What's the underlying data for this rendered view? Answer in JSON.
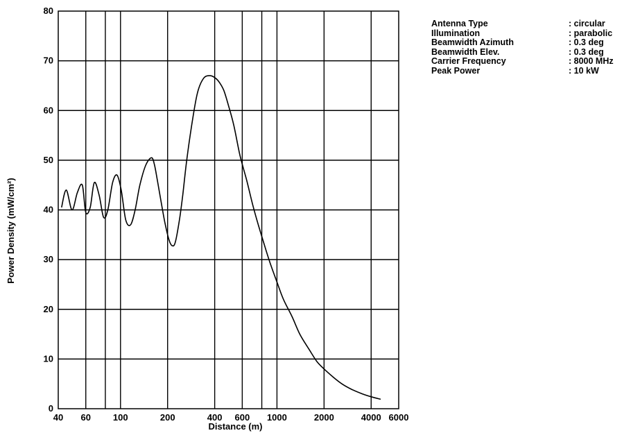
{
  "chart_data": {
    "type": "line",
    "title": "",
    "xlabel": "Distance (m)",
    "ylabel": "Power Density (mW/cm²)",
    "xscale": "log",
    "xlim": [
      40,
      6000
    ],
    "ylim": [
      0,
      80
    ],
    "grid": true,
    "x_tick_labels": [
      "40",
      "60",
      "100",
      "200",
      "400",
      "600",
      "1000",
      "2000",
      "4000",
      "6000"
    ],
    "x_ticks": [
      40,
      60,
      100,
      200,
      400,
      600,
      1000,
      2000,
      4000,
      6000
    ],
    "x_gridlines": [
      60,
      80,
      100,
      200,
      400,
      600,
      800,
      1000,
      2000,
      4000
    ],
    "y_ticks": [
      0,
      10,
      20,
      30,
      40,
      50,
      60,
      70,
      80
    ],
    "y_tick_labels": [
      "0",
      "10",
      "20",
      "30",
      "40",
      "50",
      "60",
      "70",
      "80"
    ],
    "series": [
      {
        "x": [
          42,
          45,
          49,
          53,
          57,
          60,
          64,
          68,
          73,
          78,
          83,
          89,
          95,
          101,
          108,
          116,
          124,
          133,
          145,
          158,
          165,
          172,
          181,
          192,
          204,
          214,
          224,
          238,
          250,
          265,
          285,
          310,
          340,
          375,
          405,
          432,
          458,
          490,
          530,
          580,
          640,
          700,
          760,
          830,
          900,
          1000,
          1100,
          1250,
          1400,
          1600,
          1800,
          2000,
          2300,
          2600,
          3000,
          3500,
          4000,
          4600
        ],
        "values": [
          40.5,
          44,
          40,
          43.5,
          45,
          39.5,
          40.5,
          45.5,
          43,
          38.5,
          40,
          45.5,
          47,
          44,
          38,
          37,
          40,
          45,
          49,
          50.5,
          49,
          46,
          42,
          37.5,
          34,
          32.8,
          33.5,
          38,
          43,
          50,
          57,
          63.5,
          66.5,
          67,
          66.5,
          65.5,
          64,
          61,
          57,
          51,
          46,
          41,
          37,
          33,
          29.5,
          25.5,
          22,
          18.5,
          15,
          12,
          9.5,
          8,
          6.3,
          5,
          3.9,
          3,
          2.4,
          1.9
        ]
      }
    ]
  },
  "info": [
    {
      "label": "Antenna Type",
      "value": ": circular"
    },
    {
      "label": "Illumination",
      "value": ": parabolic"
    },
    {
      "label": "Beamwidth Azimuth",
      "value": ": 0.3 deg"
    },
    {
      "label": "Beamwidth Elev.",
      "value": ": 0.3 deg"
    },
    {
      "label": "Carrier Frequency",
      "value": ": 8000 MHz"
    },
    {
      "label": "Peak Power",
      "value": ": 10 kW"
    }
  ]
}
